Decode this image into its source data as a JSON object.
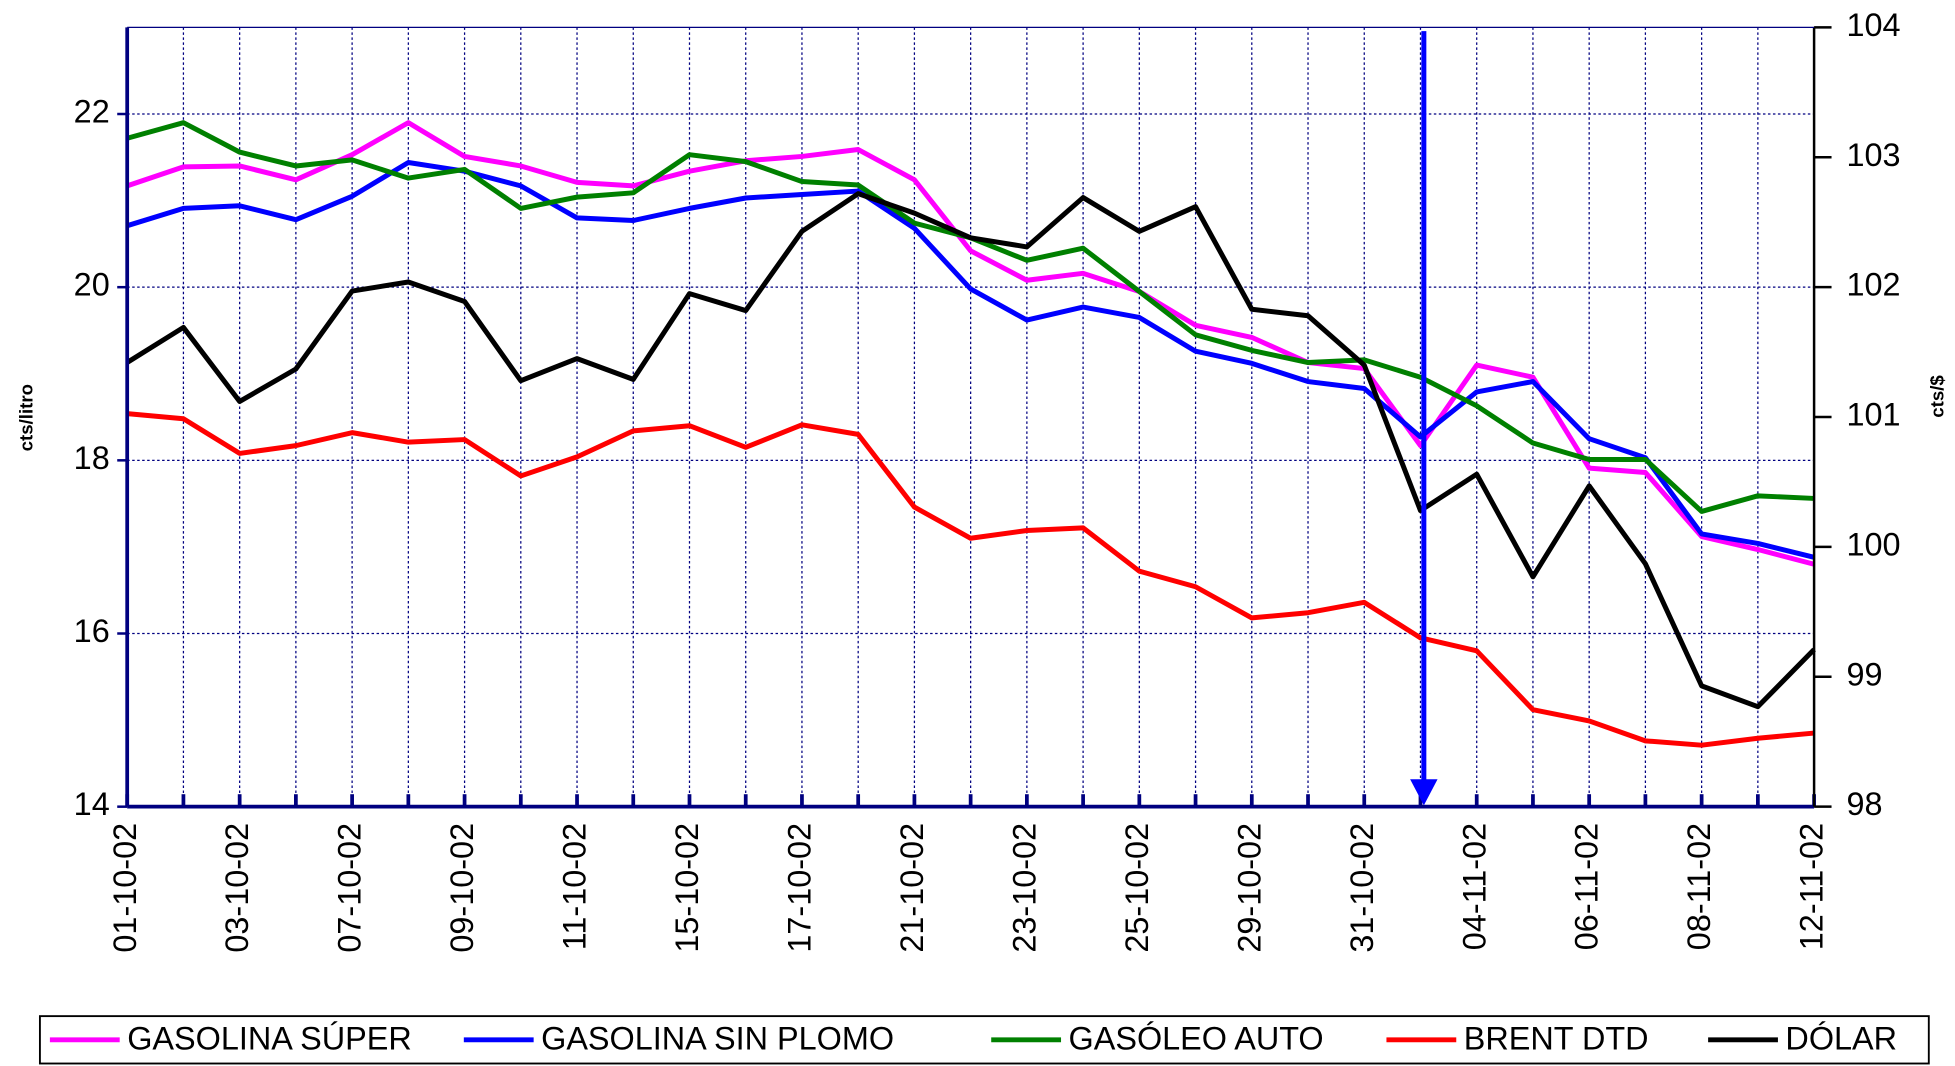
{
  "chart_data": {
    "type": "line",
    "y_label": "cts/litro",
    "y2_label": "cts/$",
    "categories": [
      "01-10-02",
      null,
      "03-10-02",
      null,
      "07-10-02",
      null,
      "09-10-02",
      null,
      "11-10-02",
      null,
      "15-10-02",
      null,
      "17-10-02",
      null,
      "21-10-02",
      null,
      "23-10-02",
      null,
      "25-10-02",
      null,
      "29-10-02",
      null,
      "31-10-02",
      null,
      "04-11-02",
      null,
      "06-11-02",
      null,
      "08-11-02",
      null,
      "12-11-02"
    ],
    "ylim": [
      14,
      23
    ],
    "yticks": [
      14,
      16,
      18,
      20,
      22
    ],
    "y2lim": [
      98,
      104
    ],
    "y2ticks": [
      98,
      99,
      100,
      101,
      102,
      103,
      104
    ],
    "grid": true,
    "legend": "bottom",
    "series": [
      {
        "name": "GASOLINA SÚPER",
        "color": "#ff00ff",
        "values": [
          21.17,
          21.39,
          21.4,
          21.24,
          21.53,
          21.9,
          21.51,
          21.4,
          21.21,
          21.17,
          21.34,
          21.46,
          21.51,
          21.59,
          21.24,
          20.42,
          20.08,
          20.16,
          19.95,
          19.56,
          19.42,
          19.13,
          19.06,
          18.17,
          19.1,
          18.96,
          17.91,
          17.86,
          17.12,
          16.97,
          16.8
        ]
      },
      {
        "name": "GASOLINA SIN PLOMO",
        "color": "#0000ff",
        "values": [
          20.71,
          20.91,
          20.94,
          20.78,
          21.05,
          21.44,
          21.34,
          21.17,
          20.8,
          20.77,
          20.91,
          21.03,
          21.07,
          21.11,
          20.68,
          19.98,
          19.62,
          19.77,
          19.65,
          19.26,
          19.12,
          18.91,
          18.83,
          18.27,
          18.79,
          18.91,
          18.25,
          18.03,
          17.15,
          17.04,
          16.88
        ]
      },
      {
        "name": "GASÓLEO AUTO",
        "color": "#008000",
        "values": [
          21.72,
          21.9,
          21.56,
          21.4,
          21.47,
          21.26,
          21.36,
          20.91,
          21.04,
          21.09,
          21.53,
          21.45,
          21.22,
          21.18,
          20.74,
          20.57,
          20.31,
          20.45,
          19.95,
          19.45,
          19.27,
          19.13,
          19.16,
          18.96,
          18.63,
          18.2,
          18.01,
          18.01,
          17.41,
          17.59,
          17.56
        ]
      },
      {
        "name": "BRENT DTD",
        "color": "#ff0000",
        "values": [
          18.54,
          18.48,
          18.08,
          18.17,
          18.32,
          18.21,
          18.24,
          17.82,
          18.04,
          18.34,
          18.4,
          18.15,
          18.41,
          18.3,
          17.46,
          17.1,
          17.19,
          17.22,
          16.72,
          16.54,
          16.18,
          16.24,
          16.36,
          15.95,
          15.8,
          15.12,
          14.99,
          14.76,
          14.71,
          14.79,
          14.85
        ]
      },
      {
        "name": "DÓLAR",
        "color": "#000000",
        "axis": "y2",
        "values": [
          101.42,
          101.69,
          101.12,
          101.37,
          101.97,
          102.04,
          101.89,
          101.28,
          101.45,
          101.29,
          101.95,
          101.82,
          102.43,
          102.72,
          102.57,
          102.38,
          102.31,
          102.69,
          102.43,
          102.62,
          101.83,
          101.78,
          101.4,
          100.28,
          100.56,
          99.77,
          100.47,
          99.87,
          98.93,
          98.77,
          99.21
        ]
      }
    ]
  }
}
